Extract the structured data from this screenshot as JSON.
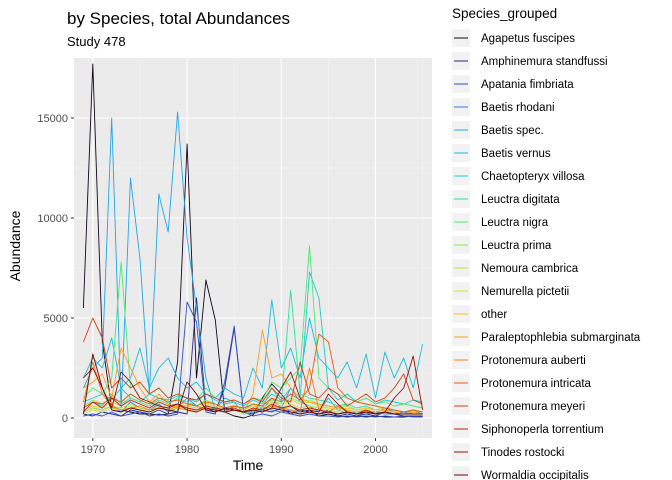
{
  "chart_data": {
    "type": "line",
    "title": "by Species, total Abundances",
    "subtitle": "Study 478",
    "xlabel": "Time",
    "ylabel": "Abundance",
    "xlim": [
      1968,
      2006
    ],
    "ylim": [
      -1000,
      18000
    ],
    "x_ticks": [
      1970,
      1980,
      1990,
      2000
    ],
    "y_ticks": [
      0,
      5000,
      10000,
      15000
    ],
    "x_tick_labels": [
      "1970",
      "1980",
      "1990",
      "2000"
    ],
    "y_tick_labels": [
      "0",
      "5000",
      "10000",
      "15000"
    ],
    "grid": true,
    "background": "#ebebeb",
    "legend": {
      "title": "Species_grouped",
      "placement": "right",
      "items": [
        {
          "label": "Agapetus fuscipes",
          "color": "#14061f"
        },
        {
          "label": "Amphinemura standfussi",
          "color": "#2a2a8a"
        },
        {
          "label": "Apatania fimbriata",
          "color": "#2f52c4"
        },
        {
          "label": "Baetis rhodani",
          "color": "#2f7fe0"
        },
        {
          "label": "Baetis spec.",
          "color": "#23a6e6"
        },
        {
          "label": "Baetis vernus",
          "color": "#18bcd6"
        },
        {
          "label": "Chaetopteryx villosa",
          "color": "#1ecbc4"
        },
        {
          "label": "Leuctra digitata",
          "color": "#2ee09a"
        },
        {
          "label": "Leuctra nigra",
          "color": "#4be877"
        },
        {
          "label": "Leuctra prima",
          "color": "#86ec4c"
        },
        {
          "label": "Nemoura cambrica",
          "color": "#b3e63b"
        },
        {
          "label": "Nemurella pictetii",
          "color": "#d6df34"
        },
        {
          "label": "other",
          "color": "#f0c22c"
        },
        {
          "label": "Paraleptophlebia submarginata",
          "color": "#f7a022"
        },
        {
          "label": "Protonemura auberti",
          "color": "#f57d16"
        },
        {
          "label": "Protonemura intricata",
          "color": "#e85a10"
        },
        {
          "label": "Protonemura meyeri",
          "color": "#d43e0c"
        },
        {
          "label": "Siphonoperla torrentium",
          "color": "#b8250a"
        },
        {
          "label": "Tinodes rostocki",
          "color": "#931208"
        },
        {
          "label": "Wormaldia occipitalis",
          "color": "#6a0606"
        }
      ]
    },
    "x": [
      1969,
      1970,
      1971,
      1972,
      1973,
      1974,
      1975,
      1976,
      1977,
      1978,
      1979,
      1980,
      1981,
      1982,
      1983,
      1984,
      1985,
      1986,
      1987,
      1988,
      1989,
      1990,
      1991,
      1992,
      1993,
      1994,
      1995,
      1996,
      1997,
      1998,
      1999,
      2000,
      2001,
      2002,
      2003,
      2004,
      2005
    ],
    "series": [
      {
        "name": "Agapetus fuscipes",
        "color": "#14061f",
        "values": [
          5500,
          17700,
          3800,
          500,
          400,
          300,
          200,
          200,
          150,
          200,
          2800,
          13700,
          2000,
          6900,
          4900,
          300,
          100,
          0,
          150,
          1000,
          1700,
          1200,
          600,
          300,
          400,
          100,
          200,
          100,
          50,
          100,
          50,
          100,
          50,
          50,
          50,
          100,
          50
        ]
      },
      {
        "name": "Amphinemura standfussi",
        "color": "#2a2a8a",
        "values": [
          200,
          100,
          300,
          200,
          100,
          400,
          300,
          200,
          400,
          200,
          300,
          200,
          6000,
          500,
          300,
          1500,
          4500,
          300,
          200,
          400,
          300,
          500,
          200,
          400,
          300,
          200,
          400,
          100,
          200,
          100,
          200,
          100,
          300,
          200,
          100,
          100,
          100
        ]
      },
      {
        "name": "Apatania fimbriata",
        "color": "#2f52c4",
        "values": [
          100,
          200,
          100,
          300,
          100,
          200,
          300,
          100,
          200,
          100,
          200,
          5800,
          4800,
          300,
          200,
          1800,
          4600,
          300,
          100,
          200,
          100,
          300,
          200,
          100,
          200,
          100,
          100,
          50,
          100,
          50,
          100,
          50,
          100,
          50,
          100,
          50,
          50
        ]
      },
      {
        "name": "Baetis rhodani",
        "color": "#2f7fe0",
        "values": [
          300,
          500,
          400,
          600,
          300,
          800,
          500,
          400,
          700,
          300,
          500,
          1000,
          600,
          400,
          500,
          300,
          600,
          400,
          300,
          500,
          400,
          300,
          400,
          200,
          300,
          200,
          300,
          200,
          300,
          200,
          200,
          300,
          200,
          200,
          300,
          200,
          200
        ]
      },
      {
        "name": "Baetis spec.",
        "color": "#23a6e6",
        "values": [
          1500,
          2500,
          3000,
          15000,
          500,
          12000,
          8000,
          1200,
          11200,
          9300,
          15300,
          9000,
          5500,
          2000,
          400,
          1000,
          800,
          200,
          300,
          400,
          1000,
          500,
          1500,
          800,
          600,
          300,
          1000,
          400,
          200,
          300,
          400,
          200,
          500,
          300,
          200,
          400,
          200
        ]
      },
      {
        "name": "Baetis vernus",
        "color": "#18bcd6",
        "values": [
          2000,
          3000,
          2500,
          4000,
          1500,
          2000,
          3500,
          1500,
          2500,
          3000,
          2000,
          1500,
          1800,
          1200,
          1000,
          1500,
          1200,
          1000,
          2500,
          1500,
          5900,
          2500,
          3500,
          2000,
          5000,
          3000,
          2500,
          2000,
          2800,
          1500,
          3200,
          1000,
          3300,
          2000,
          3000,
          1500,
          3700
        ]
      },
      {
        "name": "Chaetopteryx villosa",
        "color": "#1ecbc4",
        "values": [
          800,
          1000,
          1200,
          900,
          1500,
          1000,
          800,
          1200,
          1000,
          900,
          1100,
          1000,
          800,
          1200,
          900,
          700,
          800,
          600,
          900,
          700,
          1200,
          900,
          1500,
          1000,
          7300,
          6000,
          1500,
          900,
          1200,
          800,
          1000,
          700,
          900,
          800,
          700,
          900,
          800
        ]
      },
      {
        "name": "Leuctra digitata",
        "color": "#2ee09a",
        "values": [
          500,
          800,
          600,
          1200,
          700,
          1000,
          800,
          600,
          900,
          700,
          1000,
          800,
          600,
          900,
          700,
          500,
          600,
          400,
          700,
          500,
          1500,
          800,
          6400,
          1200,
          1000,
          900,
          800,
          600,
          700,
          500,
          600,
          400,
          500,
          400,
          300,
          400,
          300
        ]
      },
      {
        "name": "Leuctra nigra",
        "color": "#4be877",
        "values": [
          1000,
          1500,
          1200,
          2000,
          7800,
          1500,
          1800,
          1200,
          1500,
          1000,
          1200,
          1000,
          900,
          1500,
          1000,
          800,
          900,
          700,
          1000,
          900,
          1800,
          1500,
          2000,
          2500,
          8600,
          2000,
          1500,
          1200,
          1000,
          800,
          1000,
          700,
          800,
          600,
          700,
          600,
          500
        ]
      },
      {
        "name": "Leuctra prima",
        "color": "#86ec4c",
        "values": [
          600,
          900,
          700,
          1000,
          800,
          1200,
          900,
          700,
          1000,
          800,
          900,
          700,
          600,
          900,
          700,
          500,
          600,
          500,
          700,
          600,
          900,
          700,
          1000,
          800,
          900,
          700,
          600,
          500,
          600,
          400,
          500,
          400,
          500,
          400,
          300,
          400,
          300
        ]
      },
      {
        "name": "Nemoura cambrica",
        "color": "#b3e63b",
        "values": [
          300,
          500,
          400,
          600,
          500,
          700,
          500,
          400,
          600,
          500,
          600,
          500,
          400,
          600,
          500,
          400,
          500,
          300,
          500,
          400,
          600,
          500,
          700,
          500,
          600,
          500,
          400,
          300,
          400,
          300,
          400,
          300,
          400,
          300,
          200,
          300,
          200
        ]
      },
      {
        "name": "Nemurella pictetii",
        "color": "#d6df34",
        "values": [
          200,
          400,
          300,
          500,
          400,
          600,
          400,
          300,
          500,
          400,
          500,
          400,
          300,
          500,
          400,
          300,
          400,
          200,
          400,
          300,
          500,
          400,
          600,
          400,
          500,
          400,
          300,
          200,
          300,
          200,
          300,
          200,
          300,
          200,
          200,
          200,
          200
        ]
      },
      {
        "name": "other",
        "color": "#f0c22c",
        "values": [
          400,
          600,
          500,
          800,
          600,
          900,
          700,
          500,
          800,
          600,
          700,
          600,
          500,
          700,
          600,
          500,
          600,
          400,
          600,
          500,
          800,
          600,
          900,
          700,
          800,
          600,
          500,
          400,
          500,
          400,
          500,
          400,
          500,
          400,
          300,
          400,
          300
        ]
      },
      {
        "name": "Paraleptophlebia submarginata",
        "color": "#f7a022",
        "values": [
          1500,
          1800,
          2200,
          1000,
          3500,
          2500,
          1500,
          800,
          1200,
          700,
          500,
          400,
          300,
          500,
          400,
          300,
          400,
          300,
          1200,
          4400,
          2000,
          2200,
          1500,
          1000,
          800,
          700,
          600,
          500,
          400,
          300,
          400,
          300,
          400,
          300,
          200,
          300,
          200
        ]
      },
      {
        "name": "Protonemura auberti",
        "color": "#f57d16",
        "values": [
          800,
          2800,
          1200,
          600,
          400,
          500,
          600,
          400,
          500,
          400,
          600,
          500,
          400,
          500,
          400,
          300,
          400,
          300,
          500,
          400,
          600,
          500,
          400,
          300,
          2500,
          400,
          300,
          600,
          300,
          200,
          300,
          200,
          300,
          200,
          200,
          200,
          200
        ]
      },
      {
        "name": "Protonemura intricata",
        "color": "#e85a10",
        "values": [
          500,
          800,
          700,
          1000,
          800,
          1200,
          900,
          700,
          1000,
          800,
          900,
          700,
          600,
          800,
          700,
          500,
          600,
          500,
          700,
          600,
          1000,
          800,
          1200,
          900,
          1500,
          4200,
          3800,
          1500,
          1000,
          800,
          700,
          600,
          500,
          400,
          300,
          400,
          300
        ]
      },
      {
        "name": "Protonemura meyeri",
        "color": "#d43e0c",
        "values": [
          3800,
          5000,
          4000,
          1500,
          2000,
          1500,
          1800,
          1200,
          1500,
          1000,
          1200,
          1000,
          900,
          1200,
          1000,
          800,
          900,
          700,
          1000,
          800,
          1500,
          1000,
          800,
          2800,
          1200,
          1000,
          1500,
          1200,
          600,
          900,
          1200,
          800,
          1000,
          1500,
          2200,
          900,
          700
        ]
      },
      {
        "name": "Siphonoperla torrentium",
        "color": "#b8250a",
        "values": [
          300,
          800,
          500,
          1000,
          600,
          900,
          700,
          500,
          800,
          600,
          700,
          500,
          400,
          600,
          500,
          400,
          500,
          300,
          500,
          400,
          700,
          500,
          600,
          400,
          500,
          400,
          300,
          200,
          300,
          200,
          300,
          200,
          300,
          200,
          200,
          200,
          200
        ]
      },
      {
        "name": "Tinodes rostocki",
        "color": "#931208",
        "values": [
          2000,
          2500,
          1500,
          500,
          2300,
          1800,
          1000,
          800,
          600,
          500,
          700,
          400,
          300,
          500,
          400,
          300,
          400,
          300,
          400,
          300,
          500,
          1500,
          2300,
          1000,
          400,
          300,
          1200,
          700,
          300,
          200,
          400,
          200,
          300,
          1000,
          1500,
          3100,
          400
        ]
      },
      {
        "name": "Wormaldia occipitalis",
        "color": "#6a0606",
        "values": [
          200,
          3200,
          1500,
          400,
          300,
          500,
          400,
          300,
          500,
          400,
          300,
          1800,
          1200,
          400,
          300,
          500,
          400,
          300,
          400,
          300,
          500,
          400,
          300,
          200,
          300,
          200,
          300,
          200,
          300,
          200,
          300,
          200,
          300,
          200,
          200,
          200,
          200
        ]
      }
    ]
  }
}
